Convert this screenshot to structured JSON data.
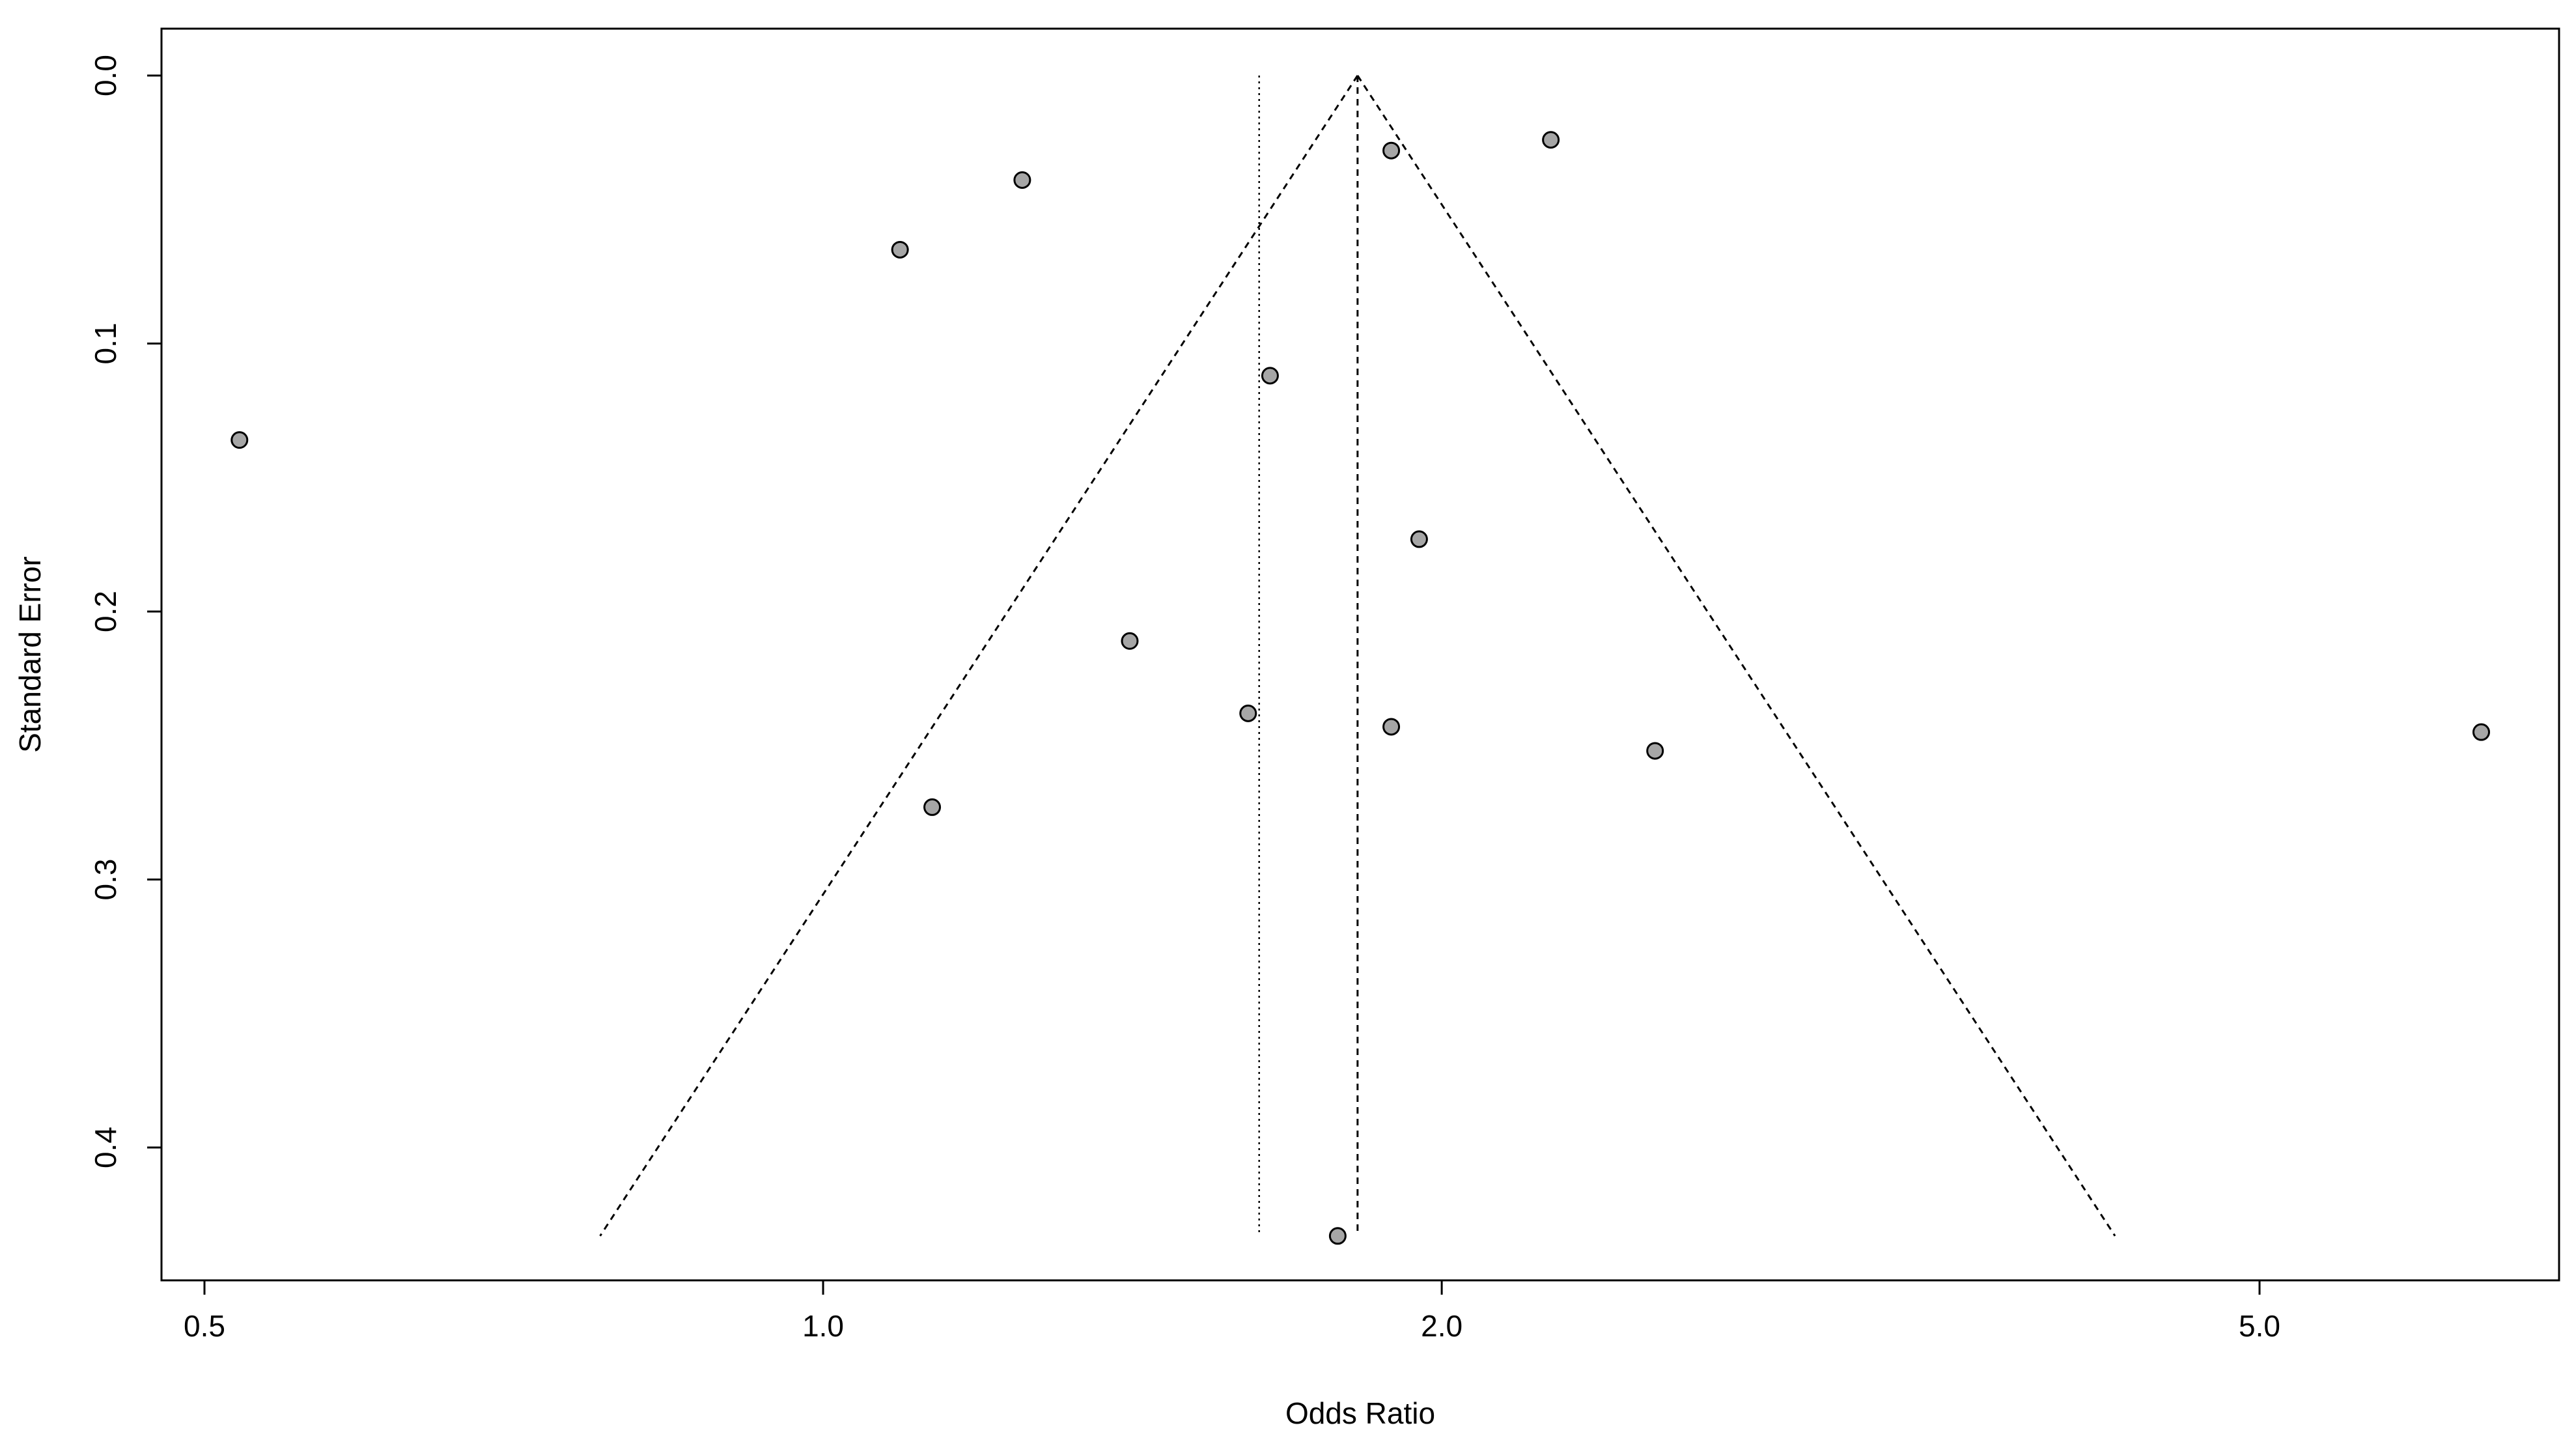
{
  "chart_data": {
    "type": "scatter",
    "title": "",
    "xlabel": "Odds Ratio",
    "ylabel": "Standard Error",
    "x_scale": "log",
    "xlim": [
      0.48,
      7.0
    ],
    "ylim": [
      0.0,
      0.45
    ],
    "y_inverted": true,
    "x_ticks": [
      {
        "value": 0.5,
        "label": "0.5"
      },
      {
        "value": 1.0,
        "label": "1.0"
      },
      {
        "value": 2.0,
        "label": "2.0"
      },
      {
        "value": 5.0,
        "label": "5.0"
      }
    ],
    "y_ticks": [
      {
        "value": 0.0,
        "label": "0.0"
      },
      {
        "value": 0.1,
        "label": "0.1"
      },
      {
        "value": 0.2,
        "label": "0.2"
      },
      {
        "value": 0.3,
        "label": "0.3"
      },
      {
        "value": 0.4,
        "label": "0.4"
      }
    ],
    "points": [
      {
        "x": 0.52,
        "y": 0.136
      },
      {
        "x": 1.09,
        "y": 0.065
      },
      {
        "x": 1.25,
        "y": 0.039
      },
      {
        "x": 1.13,
        "y": 0.273
      },
      {
        "x": 1.41,
        "y": 0.211
      },
      {
        "x": 1.61,
        "y": 0.238
      },
      {
        "x": 1.65,
        "y": 0.112
      },
      {
        "x": 1.78,
        "y": 0.433
      },
      {
        "x": 1.89,
        "y": 0.028
      },
      {
        "x": 1.89,
        "y": 0.243
      },
      {
        "x": 1.95,
        "y": 0.173
      },
      {
        "x": 2.26,
        "y": 0.024
      },
      {
        "x": 2.54,
        "y": 0.252
      },
      {
        "x": 6.41,
        "y": 0.245
      }
    ],
    "pooled_estimate": 1.82,
    "reference_line": 1.63,
    "funnel_se_max": 0.433,
    "colors": {
      "point_fill": "#a6a6a6",
      "point_stroke": "#000000",
      "line": "#000000"
    },
    "grid": false,
    "legend": "none"
  }
}
